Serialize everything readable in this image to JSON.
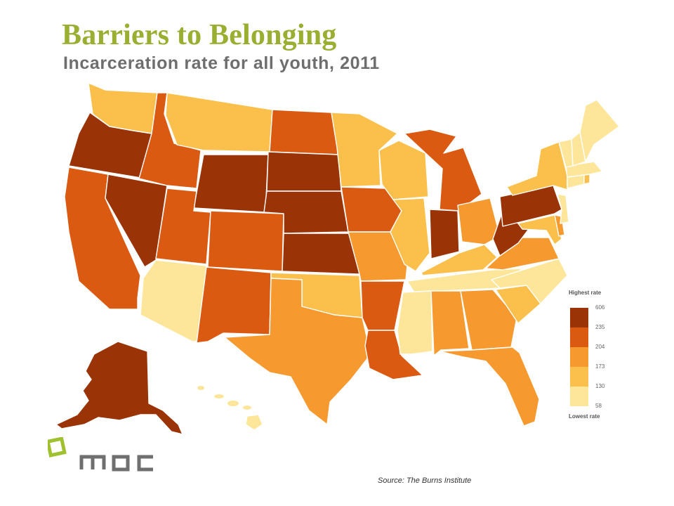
{
  "header": {
    "title": "Barriers to Belonging",
    "subtitle": "Incarceration rate for all youth, 2011"
  },
  "colors": {
    "title": "#9aae32",
    "level1": "#fde69a",
    "level2": "#fbc04c",
    "level3": "#f69a30",
    "level4": "#db5a12",
    "level5": "#9a3306",
    "logo_green": "#9fc130",
    "logo_gray": "#6f6f6f"
  },
  "legend": {
    "top_label": "Highest rate",
    "bottom_label": "Lowest rate",
    "ticks": [
      "606",
      "235",
      "204",
      "173",
      "130",
      "58"
    ]
  },
  "map": {
    "states": [
      {
        "name": "Washington",
        "level": 2
      },
      {
        "name": "Oregon",
        "level": 5
      },
      {
        "name": "California",
        "level": 4
      },
      {
        "name": "Nevada",
        "level": 5
      },
      {
        "name": "Idaho",
        "level": 4
      },
      {
        "name": "Montana",
        "level": 2
      },
      {
        "name": "Wyoming",
        "level": 5
      },
      {
        "name": "Utah",
        "level": 4
      },
      {
        "name": "Arizona",
        "level": 1
      },
      {
        "name": "Colorado",
        "level": 4
      },
      {
        "name": "New Mexico",
        "level": 4
      },
      {
        "name": "North Dakota",
        "level": 4
      },
      {
        "name": "South Dakota",
        "level": 5
      },
      {
        "name": "Nebraska",
        "level": 5
      },
      {
        "name": "Kansas",
        "level": 5
      },
      {
        "name": "Oklahoma",
        "level": 2
      },
      {
        "name": "Texas",
        "level": 3
      },
      {
        "name": "Minnesota",
        "level": 2
      },
      {
        "name": "Iowa",
        "level": 4
      },
      {
        "name": "Missouri",
        "level": 3
      },
      {
        "name": "Arkansas",
        "level": 4
      },
      {
        "name": "Louisiana",
        "level": 4
      },
      {
        "name": "Wisconsin",
        "level": 2
      },
      {
        "name": "Illinois",
        "level": 2
      },
      {
        "name": "Michigan",
        "level": 4
      },
      {
        "name": "Indiana",
        "level": 5
      },
      {
        "name": "Ohio",
        "level": 3
      },
      {
        "name": "Kentucky",
        "level": 2
      },
      {
        "name": "Tennessee",
        "level": 1
      },
      {
        "name": "Mississippi",
        "level": 1
      },
      {
        "name": "Alabama",
        "level": 3
      },
      {
        "name": "Georgia",
        "level": 3
      },
      {
        "name": "Florida",
        "level": 3
      },
      {
        "name": "South Carolina",
        "level": 2
      },
      {
        "name": "North Carolina",
        "level": 1
      },
      {
        "name": "Virginia",
        "level": 3
      },
      {
        "name": "West Virginia",
        "level": 5
      },
      {
        "name": "Maryland",
        "level": 2
      },
      {
        "name": "Delaware",
        "level": 3
      },
      {
        "name": "Pennsylvania",
        "level": 5
      },
      {
        "name": "New Jersey",
        "level": 1
      },
      {
        "name": "New York",
        "level": 2
      },
      {
        "name": "Connecticut",
        "level": 1
      },
      {
        "name": "Rhode Island",
        "level": 2
      },
      {
        "name": "Massachusetts",
        "level": 1
      },
      {
        "name": "Vermont",
        "level": 1
      },
      {
        "name": "New Hampshire",
        "level": 1
      },
      {
        "name": "Maine",
        "level": 1
      },
      {
        "name": "Alaska",
        "level": 5
      },
      {
        "name": "Hawaii",
        "level": 1
      }
    ]
  },
  "logo": {
    "text": "MDC"
  },
  "footer": {
    "source": "Source: The Burns Institute"
  }
}
